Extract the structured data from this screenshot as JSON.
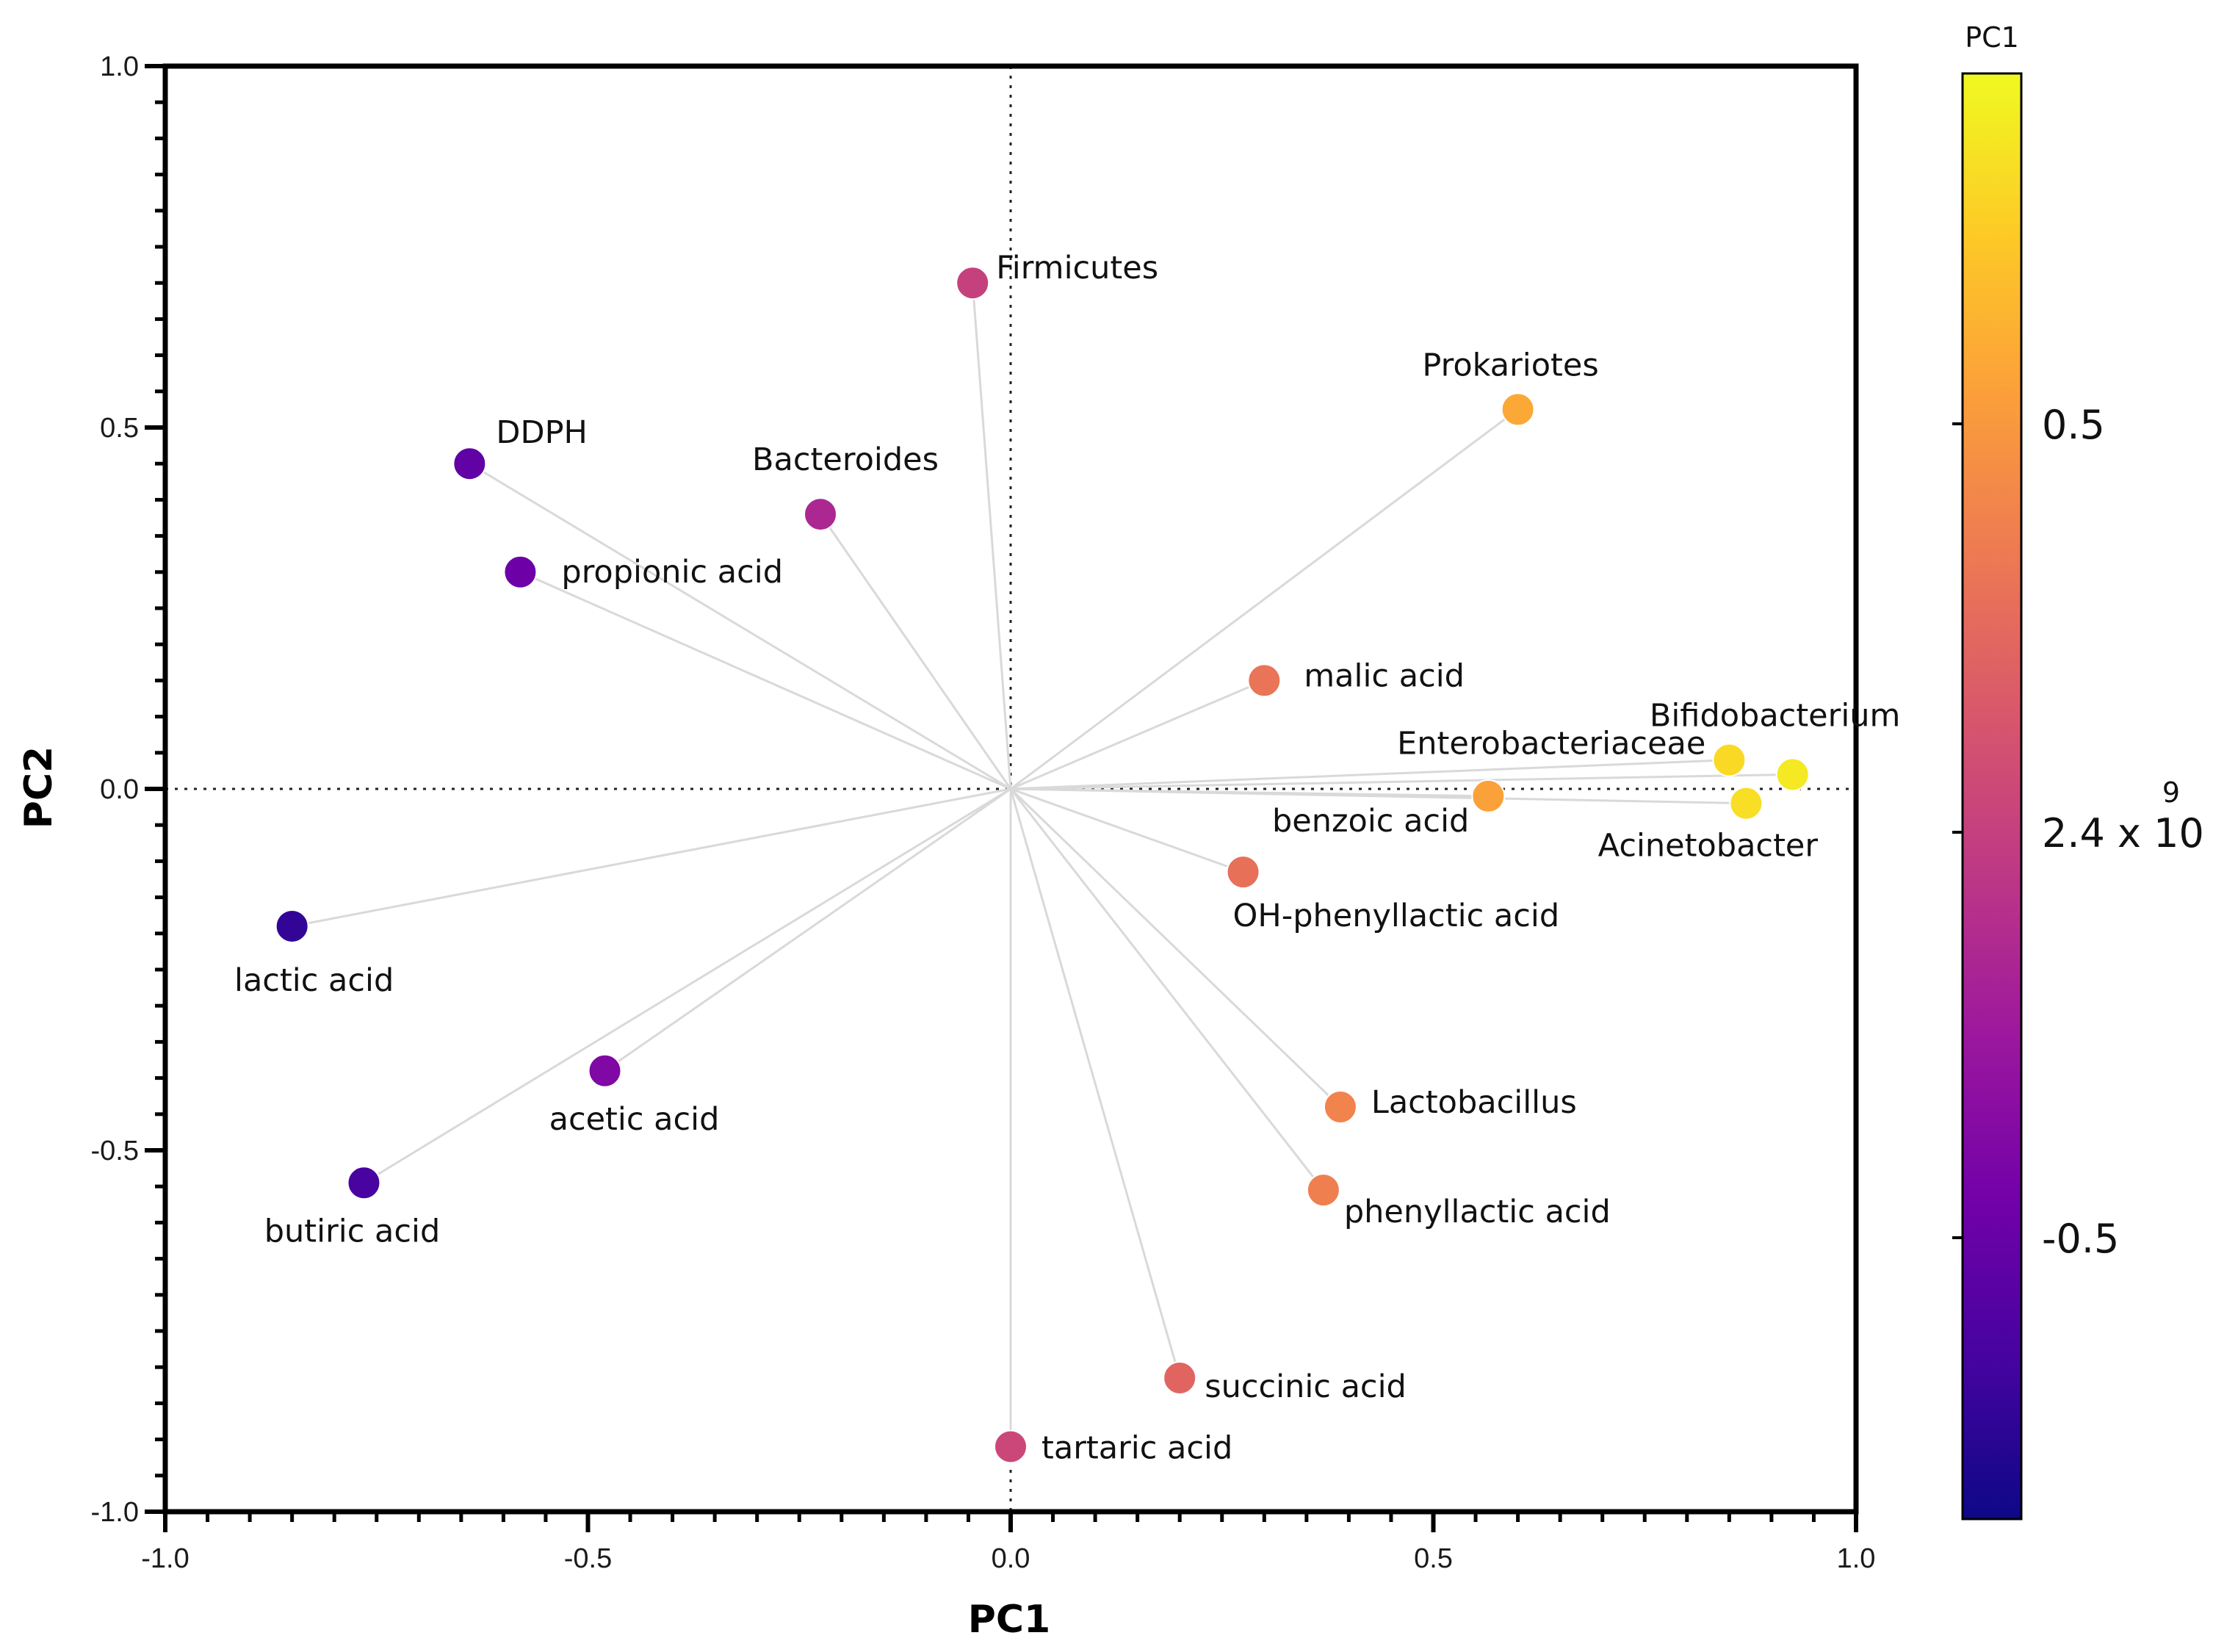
{
  "chart_data": {
    "type": "scatter",
    "subtype": "biplot",
    "xlabel": "PC1",
    "ylabel": "PC2",
    "xlim": [
      -1.0,
      1.0
    ],
    "ylim": [
      -1.0,
      1.0
    ],
    "xticks": [
      "-1.0",
      "-0.5",
      "0.0",
      "0.5",
      "1.0"
    ],
    "yticks": [
      "-1.0",
      "-0.5",
      "0.0",
      "0.5",
      "1.0"
    ],
    "grid": false,
    "reference_lines": [
      "x = 0",
      "y = 0"
    ],
    "points": [
      {
        "label": "Firmicutes",
        "x": -0.045,
        "y": 0.7
      },
      {
        "label": "Prokariotes",
        "x": 0.6,
        "y": 0.525
      },
      {
        "label": "DDPH",
        "x": -0.64,
        "y": 0.45
      },
      {
        "label": "Bacteroides",
        "x": -0.225,
        "y": 0.38
      },
      {
        "label": "propionic acid",
        "x": -0.58,
        "y": 0.3
      },
      {
        "label": "malic acid",
        "x": 0.3,
        "y": 0.15
      },
      {
        "label": "Bifidobacterium",
        "x": 0.925,
        "y": 0.02
      },
      {
        "label": "Enterobacteriaceae",
        "x": 0.85,
        "y": 0.04
      },
      {
        "label": "benzoic acid",
        "x": 0.565,
        "y": -0.01
      },
      {
        "label": "Acinetobacter",
        "x": 0.87,
        "y": -0.02
      },
      {
        "label": "OH-phenyllactic acid",
        "x": 0.275,
        "y": -0.115
      },
      {
        "label": "lactic acid",
        "x": -0.85,
        "y": -0.19
      },
      {
        "label": "acetic acid",
        "x": -0.48,
        "y": -0.39
      },
      {
        "label": "Lactobacillus",
        "x": 0.39,
        "y": -0.44
      },
      {
        "label": "butiric acid",
        "x": -0.765,
        "y": -0.545
      },
      {
        "label": "phenyllactic acid",
        "x": 0.37,
        "y": -0.555
      },
      {
        "label": "succinic acid",
        "x": 0.2,
        "y": -0.815
      },
      {
        "label": "tartaric acid",
        "x": 0.0,
        "y": -0.91
      }
    ],
    "colorbar": {
      "title": "PC1",
      "colormap": [
        "#0d0887",
        "#46039f",
        "#7201a8",
        "#9c179e",
        "#bd3786",
        "#d8576b",
        "#ed7953",
        "#fb9f3a",
        "#fdca26",
        "#f0f921"
      ],
      "tick_labels": [
        "0.5",
        "2.4 x 10",
        "-0.5"
      ],
      "tick_superscript": "9"
    }
  }
}
